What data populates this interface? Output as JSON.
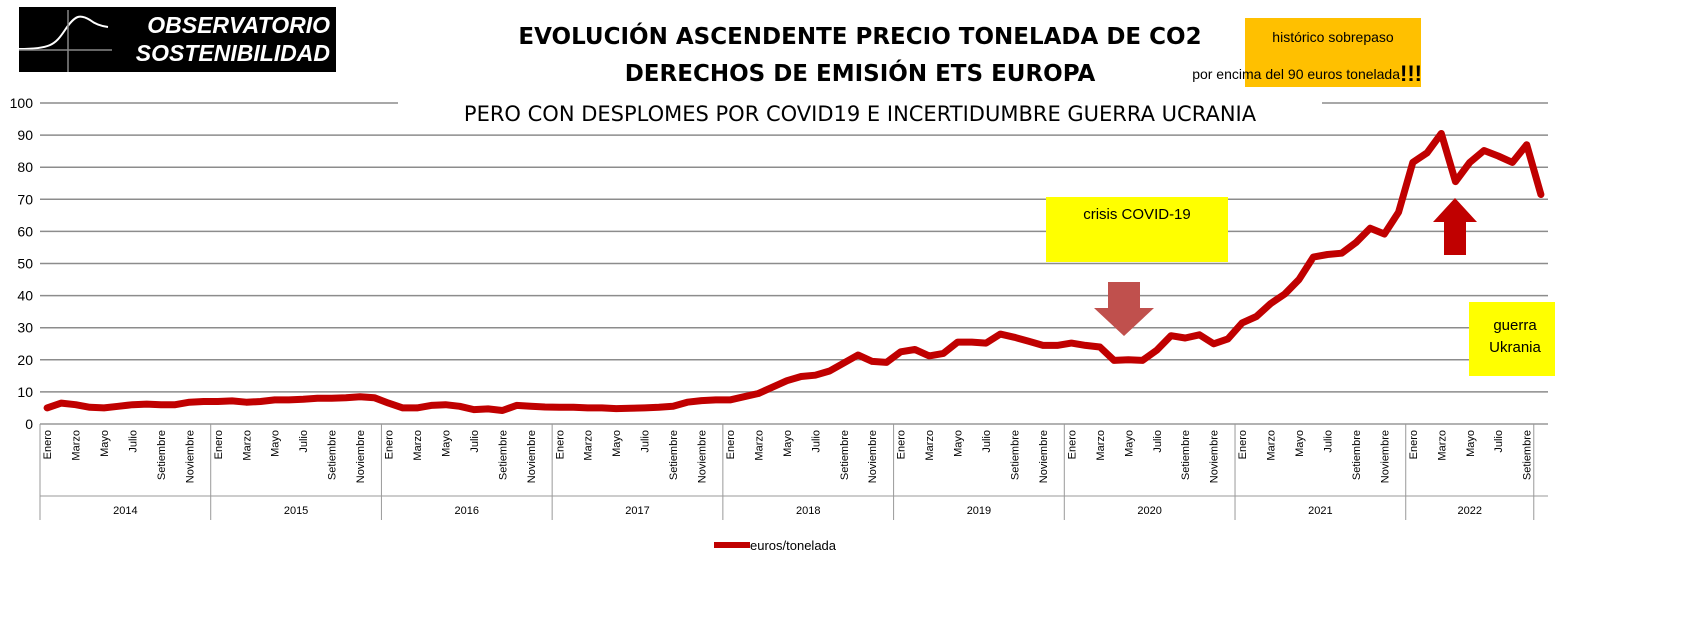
{
  "logo": {
    "line1": "OBSERVATORIO",
    "line2": "SOSTENIBILIDAD"
  },
  "chart_data": {
    "type": "line",
    "title": "EVOLUCIÓN ASCENDENTE PRECIO TONELADA DE CO2",
    "title2": "DERECHOS DE EMISIÓN ETS EUROPA",
    "subtitle": "PERO CON DESPLOMES POR COVID19 E INCERTIDUMBRE GUERRA UCRANIA",
    "ylim": [
      0,
      100
    ],
    "yticks": [
      0,
      10,
      20,
      30,
      40,
      50,
      60,
      70,
      80,
      90,
      100
    ],
    "grid": true,
    "legend_position": "bottom",
    "years": [
      "2014",
      "2015",
      "2016",
      "2017",
      "2018",
      "2019",
      "2020",
      "2021",
      "2022"
    ],
    "month_labels": [
      "Enero",
      "Marzo",
      "Mayo",
      "Julio",
      "Setiembre",
      "Noviembre"
    ],
    "month_labels_2022": [
      "Enero",
      "Marzo",
      "Mayo",
      "Julio",
      "Setiembre"
    ],
    "series": [
      {
        "name": "euros/tonelada",
        "color": "#c00000",
        "values": [
          5,
          6.5,
          6,
          5.2,
          5,
          5.5,
          6,
          6.2,
          6,
          6,
          6.8,
          7,
          7,
          7.2,
          6.8,
          7,
          7.5,
          7.5,
          7.7,
          8,
          8,
          8.2,
          8.5,
          8.2,
          6.5,
          5,
          5,
          5.8,
          6,
          5.5,
          4.5,
          4.7,
          4.2,
          5.8,
          5.5,
          5.3,
          5.2,
          5.2,
          5,
          5,
          4.8,
          4.9,
          5,
          5.2,
          5.5,
          6.8,
          7.3,
          7.5,
          7.5,
          8.5,
          9.5,
          11.5,
          13.5,
          14.8,
          15.2,
          16.5,
          19,
          21.5,
          19.5,
          19.2,
          22.5,
          23.2,
          21.2,
          22,
          25.5,
          25.5,
          25.2,
          28,
          27,
          25.8,
          24.5,
          24.5,
          25.2,
          24.5,
          24,
          19.8,
          20,
          19.8,
          23,
          27.5,
          26.8,
          27.8,
          25,
          26.5,
          31.5,
          33.5,
          37.5,
          40.5,
          45,
          52,
          52.8,
          53.2,
          56.5,
          61,
          59.2,
          66,
          81.5,
          84.5,
          90.5,
          75.5,
          81.5,
          85.2,
          83.5,
          81.5,
          87,
          71.5
        ]
      }
    ],
    "annotations": {
      "record": {
        "line1": "histórico sobrepaso",
        "line2": "por encima del 90 euros tonelada",
        "exclaim": "!!!",
        "color": "#ffc000"
      },
      "covid": {
        "text": "crisis COVID-19",
        "color": "#ffff00",
        "arrow_color": "#c0504d"
      },
      "war": {
        "line1": "guerra",
        "line2": "Ukrania",
        "color": "#ffff00",
        "arrow_color": "#c00000"
      }
    }
  }
}
